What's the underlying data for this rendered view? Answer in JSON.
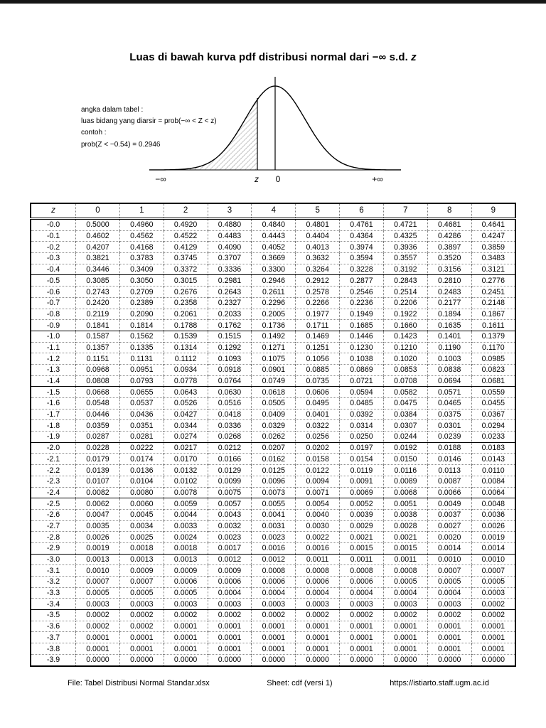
{
  "page": {
    "title_prefix": "Luas di bawah kurva pdf distribusi normal dari −∞ s.d. ",
    "title_z": "z",
    "footer": {
      "file": "File: Tabel Distribusi Normal Standar.xlsx",
      "sheet": "Sheet: cdf (versi 1)",
      "url": "https://istiarto.staff.ugm.ac.id"
    }
  },
  "figure": {
    "annotation_lines": [
      "angka dalam tabel :",
      "luas bidang yang diarsir = prob(−∞ < Z < z)",
      "contoh :",
      "prob(Z < −0.54) = 0.2946"
    ],
    "axis_labels": {
      "neg_inf": "−∞",
      "z": "z",
      "zero": "0",
      "pos_inf": "+∞"
    }
  },
  "table": {
    "columns": [
      "z",
      "0",
      "1",
      "2",
      "3",
      "4",
      "5",
      "6",
      "7",
      "8",
      "9"
    ],
    "rows": [
      {
        "z": "-0.0",
        "values": [
          "0.5000",
          "0.4960",
          "0.4920",
          "0.4880",
          "0.4840",
          "0.4801",
          "0.4761",
          "0.4721",
          "0.4681",
          "0.4641"
        ]
      },
      {
        "z": "-0.1",
        "values": [
          "0.4602",
          "0.4562",
          "0.4522",
          "0.4483",
          "0.4443",
          "0.4404",
          "0.4364",
          "0.4325",
          "0.4286",
          "0.4247"
        ]
      },
      {
        "z": "-0.2",
        "values": [
          "0.4207",
          "0.4168",
          "0.4129",
          "0.4090",
          "0.4052",
          "0.4013",
          "0.3974",
          "0.3936",
          "0.3897",
          "0.3859"
        ]
      },
      {
        "z": "-0.3",
        "values": [
          "0.3821",
          "0.3783",
          "0.3745",
          "0.3707",
          "0.3669",
          "0.3632",
          "0.3594",
          "0.3557",
          "0.3520",
          "0.3483"
        ]
      },
      {
        "z": "-0.4",
        "values": [
          "0.3446",
          "0.3409",
          "0.3372",
          "0.3336",
          "0.3300",
          "0.3264",
          "0.3228",
          "0.3192",
          "0.3156",
          "0.3121"
        ]
      },
      {
        "z": "-0.5",
        "values": [
          "0.3085",
          "0.3050",
          "0.3015",
          "0.2981",
          "0.2946",
          "0.2912",
          "0.2877",
          "0.2843",
          "0.2810",
          "0.2776"
        ]
      },
      {
        "z": "-0.6",
        "values": [
          "0.2743",
          "0.2709",
          "0.2676",
          "0.2643",
          "0.2611",
          "0.2578",
          "0.2546",
          "0.2514",
          "0.2483",
          "0.2451"
        ]
      },
      {
        "z": "-0.7",
        "values": [
          "0.2420",
          "0.2389",
          "0.2358",
          "0.2327",
          "0.2296",
          "0.2266",
          "0.2236",
          "0.2206",
          "0.2177",
          "0.2148"
        ]
      },
      {
        "z": "-0.8",
        "values": [
          "0.2119",
          "0.2090",
          "0.2061",
          "0.2033",
          "0.2005",
          "0.1977",
          "0.1949",
          "0.1922",
          "0.1894",
          "0.1867"
        ]
      },
      {
        "z": "-0.9",
        "values": [
          "0.1841",
          "0.1814",
          "0.1788",
          "0.1762",
          "0.1736",
          "0.1711",
          "0.1685",
          "0.1660",
          "0.1635",
          "0.1611"
        ]
      },
      {
        "z": "-1.0",
        "values": [
          "0.1587",
          "0.1562",
          "0.1539",
          "0.1515",
          "0.1492",
          "0.1469",
          "0.1446",
          "0.1423",
          "0.1401",
          "0.1379"
        ]
      },
      {
        "z": "-1.1",
        "values": [
          "0.1357",
          "0.1335",
          "0.1314",
          "0.1292",
          "0.1271",
          "0.1251",
          "0.1230",
          "0.1210",
          "0.1190",
          "0.1170"
        ]
      },
      {
        "z": "-1.2",
        "values": [
          "0.1151",
          "0.1131",
          "0.1112",
          "0.1093",
          "0.1075",
          "0.1056",
          "0.1038",
          "0.1020",
          "0.1003",
          "0.0985"
        ]
      },
      {
        "z": "-1.3",
        "values": [
          "0.0968",
          "0.0951",
          "0.0934",
          "0.0918",
          "0.0901",
          "0.0885",
          "0.0869",
          "0.0853",
          "0.0838",
          "0.0823"
        ]
      },
      {
        "z": "-1.4",
        "values": [
          "0.0808",
          "0.0793",
          "0.0778",
          "0.0764",
          "0.0749",
          "0.0735",
          "0.0721",
          "0.0708",
          "0.0694",
          "0.0681"
        ]
      },
      {
        "z": "-1.5",
        "values": [
          "0.0668",
          "0.0655",
          "0.0643",
          "0.0630",
          "0.0618",
          "0.0606",
          "0.0594",
          "0.0582",
          "0.0571",
          "0.0559"
        ]
      },
      {
        "z": "-1.6",
        "values": [
          "0.0548",
          "0.0537",
          "0.0526",
          "0.0516",
          "0.0505",
          "0.0495",
          "0.0485",
          "0.0475",
          "0.0465",
          "0.0455"
        ]
      },
      {
        "z": "-1.7",
        "values": [
          "0.0446",
          "0.0436",
          "0.0427",
          "0.0418",
          "0.0409",
          "0.0401",
          "0.0392",
          "0.0384",
          "0.0375",
          "0.0367"
        ]
      },
      {
        "z": "-1.8",
        "values": [
          "0.0359",
          "0.0351",
          "0.0344",
          "0.0336",
          "0.0329",
          "0.0322",
          "0.0314",
          "0.0307",
          "0.0301",
          "0.0294"
        ]
      },
      {
        "z": "-1.9",
        "values": [
          "0.0287",
          "0.0281",
          "0.0274",
          "0.0268",
          "0.0262",
          "0.0256",
          "0.0250",
          "0.0244",
          "0.0239",
          "0.0233"
        ]
      },
      {
        "z": "-2.0",
        "values": [
          "0.0228",
          "0.0222",
          "0.0217",
          "0.0212",
          "0.0207",
          "0.0202",
          "0.0197",
          "0.0192",
          "0.0188",
          "0.0183"
        ]
      },
      {
        "z": "-2.1",
        "values": [
          "0.0179",
          "0.0174",
          "0.0170",
          "0.0166",
          "0.0162",
          "0.0158",
          "0.0154",
          "0.0150",
          "0.0146",
          "0.0143"
        ]
      },
      {
        "z": "-2.2",
        "values": [
          "0.0139",
          "0.0136",
          "0.0132",
          "0.0129",
          "0.0125",
          "0.0122",
          "0.0119",
          "0.0116",
          "0.0113",
          "0.0110"
        ]
      },
      {
        "z": "-2.3",
        "values": [
          "0.0107",
          "0.0104",
          "0.0102",
          "0.0099",
          "0.0096",
          "0.0094",
          "0.0091",
          "0.0089",
          "0.0087",
          "0.0084"
        ]
      },
      {
        "z": "-2.4",
        "values": [
          "0.0082",
          "0.0080",
          "0.0078",
          "0.0075",
          "0.0073",
          "0.0071",
          "0.0069",
          "0.0068",
          "0.0066",
          "0.0064"
        ]
      },
      {
        "z": "-2.5",
        "values": [
          "0.0062",
          "0.0060",
          "0.0059",
          "0.0057",
          "0.0055",
          "0.0054",
          "0.0052",
          "0.0051",
          "0.0049",
          "0.0048"
        ]
      },
      {
        "z": "-2.6",
        "values": [
          "0.0047",
          "0.0045",
          "0.0044",
          "0.0043",
          "0.0041",
          "0.0040",
          "0.0039",
          "0.0038",
          "0.0037",
          "0.0036"
        ]
      },
      {
        "z": "-2.7",
        "values": [
          "0.0035",
          "0.0034",
          "0.0033",
          "0.0032",
          "0.0031",
          "0.0030",
          "0.0029",
          "0.0028",
          "0.0027",
          "0.0026"
        ]
      },
      {
        "z": "-2.8",
        "values": [
          "0.0026",
          "0.0025",
          "0.0024",
          "0.0023",
          "0.0023",
          "0.0022",
          "0.0021",
          "0.0021",
          "0.0020",
          "0.0019"
        ]
      },
      {
        "z": "-2.9",
        "values": [
          "0.0019",
          "0.0018",
          "0.0018",
          "0.0017",
          "0.0016",
          "0.0016",
          "0.0015",
          "0.0015",
          "0.0014",
          "0.0014"
        ]
      },
      {
        "z": "-3.0",
        "values": [
          "0.0013",
          "0.0013",
          "0.0013",
          "0.0012",
          "0.0012",
          "0.0011",
          "0.0011",
          "0.0011",
          "0.0010",
          "0.0010"
        ]
      },
      {
        "z": "-3.1",
        "values": [
          "0.0010",
          "0.0009",
          "0.0009",
          "0.0009",
          "0.0008",
          "0.0008",
          "0.0008",
          "0.0008",
          "0.0007",
          "0.0007"
        ]
      },
      {
        "z": "-3.2",
        "values": [
          "0.0007",
          "0.0007",
          "0.0006",
          "0.0006",
          "0.0006",
          "0.0006",
          "0.0006",
          "0.0005",
          "0.0005",
          "0.0005"
        ]
      },
      {
        "z": "-3.3",
        "values": [
          "0.0005",
          "0.0005",
          "0.0005",
          "0.0004",
          "0.0004",
          "0.0004",
          "0.0004",
          "0.0004",
          "0.0004",
          "0.0003"
        ]
      },
      {
        "z": "-3.4",
        "values": [
          "0.0003",
          "0.0003",
          "0.0003",
          "0.0003",
          "0.0003",
          "0.0003",
          "0.0003",
          "0.0003",
          "0.0003",
          "0.0002"
        ]
      },
      {
        "z": "-3.5",
        "values": [
          "0.0002",
          "0.0002",
          "0.0002",
          "0.0002",
          "0.0002",
          "0.0002",
          "0.0002",
          "0.0002",
          "0.0002",
          "0.0002"
        ]
      },
      {
        "z": "-3.6",
        "values": [
          "0.0002",
          "0.0002",
          "0.0001",
          "0.0001",
          "0.0001",
          "0.0001",
          "0.0001",
          "0.0001",
          "0.0001",
          "0.0001"
        ]
      },
      {
        "z": "-3.7",
        "values": [
          "0.0001",
          "0.0001",
          "0.0001",
          "0.0001",
          "0.0001",
          "0.0001",
          "0.0001",
          "0.0001",
          "0.0001",
          "0.0001"
        ]
      },
      {
        "z": "-3.8",
        "values": [
          "0.0001",
          "0.0001",
          "0.0001",
          "0.0001",
          "0.0001",
          "0.0001",
          "0.0001",
          "0.0001",
          "0.0001",
          "0.0001"
        ]
      },
      {
        "z": "-3.9",
        "values": [
          "0.0000",
          "0.0000",
          "0.0000",
          "0.0000",
          "0.0000",
          "0.0000",
          "0.0000",
          "0.0000",
          "0.0000",
          "0.0000"
        ]
      }
    ]
  }
}
